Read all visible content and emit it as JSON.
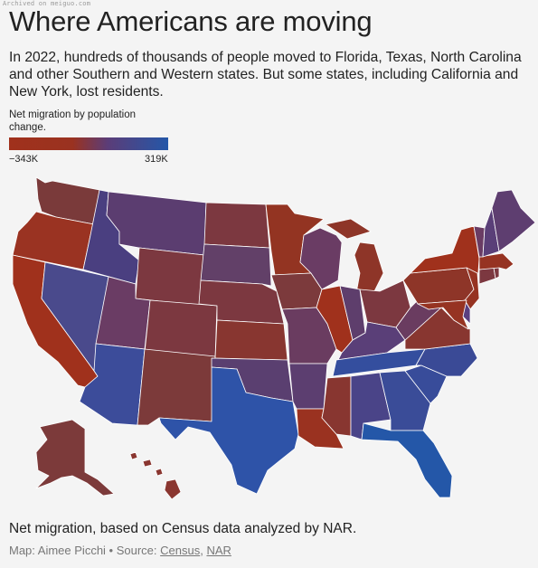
{
  "watermark": "Archived on meiguo.com",
  "title": "Where Americans are moving",
  "subtitle": "In 2022, hundreds of thousands of people moved to Florida, Texas, North Carolina and other Southern and Western states. But some states, including California and New York, lost residents.",
  "legend": {
    "label": "Net migration by population change.",
    "min_label": "−343K",
    "max_label": "319K",
    "min_value": -343000,
    "max_value": 319000,
    "colors": {
      "negative": "#a0311c",
      "middle": "#5b3d78",
      "positive": "#2457a8"
    }
  },
  "note": "Net migration, based on Census data analyzed by NAR.",
  "credit": {
    "prefix": "Map: Aimee Picchi • Source: ",
    "source_1": "Census",
    "separator": ", ",
    "source_2": "NAR"
  },
  "states": [
    {
      "id": "WA",
      "color": "#7a3a3a"
    },
    {
      "id": "OR",
      "color": "#9a3322"
    },
    {
      "id": "CA",
      "color": "#a0311c"
    },
    {
      "id": "ID",
      "color": "#4a3f80"
    },
    {
      "id": "NV",
      "color": "#4a4a8c"
    },
    {
      "id": "MT",
      "color": "#5b3d70"
    },
    {
      "id": "WY",
      "color": "#7c3840"
    },
    {
      "id": "UT",
      "color": "#6a3c64"
    },
    {
      "id": "AZ",
      "color": "#3c4c9a"
    },
    {
      "id": "CO",
      "color": "#7c3840"
    },
    {
      "id": "NM",
      "color": "#7c3a3a"
    },
    {
      "id": "ND",
      "color": "#7c3840"
    },
    {
      "id": "SD",
      "color": "#624068"
    },
    {
      "id": "NE",
      "color": "#7c3840"
    },
    {
      "id": "KS",
      "color": "#883630"
    },
    {
      "id": "OK",
      "color": "#5a3f70"
    },
    {
      "id": "TX",
      "color": "#2e53a8"
    },
    {
      "id": "MN",
      "color": "#933422"
    },
    {
      "id": "IA",
      "color": "#7c3a3c"
    },
    {
      "id": "MO",
      "color": "#6a3c60"
    },
    {
      "id": "AR",
      "color": "#5c3e70"
    },
    {
      "id": "LA",
      "color": "#9a3220"
    },
    {
      "id": "WI",
      "color": "#6a3c64"
    },
    {
      "id": "IL",
      "color": "#a0311c"
    },
    {
      "id": "MI",
      "color": "#8e3528"
    },
    {
      "id": "IN",
      "color": "#5e3e6c"
    },
    {
      "id": "OH",
      "color": "#7c3840"
    },
    {
      "id": "KY",
      "color": "#5a3f78"
    },
    {
      "id": "TN",
      "color": "#344e9e"
    },
    {
      "id": "MS",
      "color": "#883630"
    },
    {
      "id": "AL",
      "color": "#4a4488"
    },
    {
      "id": "GA",
      "color": "#3a4c98"
    },
    {
      "id": "FL",
      "color": "#2457a8"
    },
    {
      "id": "SC",
      "color": "#384c9a"
    },
    {
      "id": "NC",
      "color": "#3a4a96"
    },
    {
      "id": "VA",
      "color": "#883630"
    },
    {
      "id": "WV",
      "color": "#6a3c60"
    },
    {
      "id": "PA",
      "color": "#8e3528"
    },
    {
      "id": "NY",
      "color": "#a0311c"
    },
    {
      "id": "NJ",
      "color": "#963322"
    },
    {
      "id": "DE",
      "color": "#5a4080"
    },
    {
      "id": "MD",
      "color": "#963322"
    },
    {
      "id": "CT",
      "color": "#7c3840"
    },
    {
      "id": "RI",
      "color": "#7c3840"
    },
    {
      "id": "MA",
      "color": "#963322"
    },
    {
      "id": "VT",
      "color": "#6a3c64"
    },
    {
      "id": "NH",
      "color": "#5a3f78"
    },
    {
      "id": "ME",
      "color": "#5e3e70"
    },
    {
      "id": "AK",
      "color": "#7c3a3a"
    },
    {
      "id": "HI",
      "color": "#8a3630"
    }
  ]
}
